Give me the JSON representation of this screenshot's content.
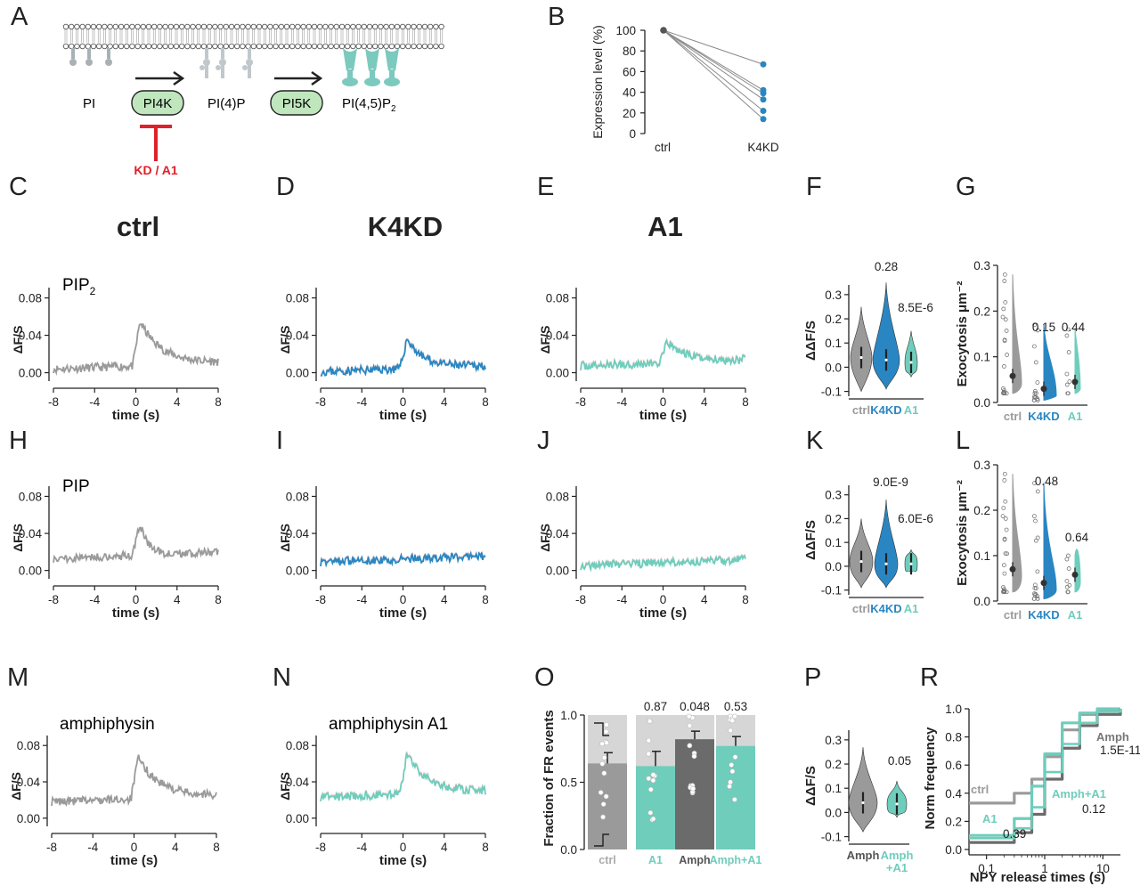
{
  "panel_labels": [
    "A",
    "B",
    "C",
    "D",
    "E",
    "F",
    "G",
    "H",
    "I",
    "J",
    "K",
    "L",
    "M",
    "N",
    "O",
    "P",
    "R"
  ],
  "colors": {
    "ctrl": "#9a9a9a",
    "k4kd": "#2a86c2",
    "a1": "#6fcdbc",
    "amph": "#6b6b6b",
    "green_box": "#bfe6bd",
    "inhibit": "#e0202a",
    "teal_lipid": "#7cc9be",
    "gray_lipid": "#a9b1b5"
  },
  "schematic": {
    "lipids": [
      "PI",
      "PI(4)P",
      "PI(4,5)P",
      "2"
    ],
    "kinases": [
      "PI4K",
      "PI5K"
    ],
    "inhibitor": "KD / A1"
  },
  "conditions": [
    "ctrl",
    "K4KD",
    "A1"
  ],
  "traces": {
    "row1_label": "PIP",
    "row1_sub": "2",
    "row2_label": "PIP",
    "row3_label": "amphiphysin",
    "row3b_label": "amphiphysin A1",
    "ylabel": "ΔF/S",
    "xlabel": "time (s)",
    "yticks": [
      "0.08",
      "0.04",
      "0.00"
    ],
    "xticks": [
      "-8",
      "-4",
      "0",
      "4",
      "8"
    ]
  },
  "chart_data": [
    {
      "id": "B",
      "type": "line",
      "title": "",
      "ylabel": "Expression level (%)",
      "xlabel": "",
      "categories": [
        "ctrl",
        "K4KD"
      ],
      "ylim": [
        0,
        100
      ],
      "yticks": [
        "100",
        "80",
        "60",
        "40",
        "20",
        "0"
      ],
      "series": [
        {
          "name": "cell1",
          "values": [
            100,
            67
          ]
        },
        {
          "name": "cell2",
          "values": [
            100,
            42
          ]
        },
        {
          "name": "cell3",
          "values": [
            100,
            39
          ]
        },
        {
          "name": "cell4",
          "values": [
            100,
            33
          ]
        },
        {
          "name": "cell5",
          "values": [
            100,
            22
          ]
        },
        {
          "name": "cell6",
          "values": [
            100,
            14
          ]
        }
      ]
    },
    {
      "id": "F",
      "type": "violin",
      "ylabel": "ΔΔF/S",
      "categories": [
        "ctrl",
        "K4KD",
        "A1"
      ],
      "ylim": [
        -0.12,
        0.34
      ],
      "yticks": [
        "0.3",
        "0.2",
        "0.1",
        "0.0",
        "-0.1"
      ],
      "medians": [
        0.04,
        0.03,
        0.02
      ],
      "p_values": [
        "",
        "0.28",
        "8.5E-6"
      ]
    },
    {
      "id": "G",
      "type": "violin",
      "ylabel": "Exocytosis μm⁻²",
      "categories": [
        "ctrl",
        "K4KD",
        "A1"
      ],
      "ylim": [
        0,
        0.3
      ],
      "yticks": [
        "0.3",
        "0.2",
        "0.1",
        "0.0"
      ],
      "means": [
        0.058,
        0.03,
        0.045
      ],
      "p_values": [
        "",
        "0.15",
        "0.44"
      ]
    },
    {
      "id": "K",
      "type": "violin",
      "ylabel": "ΔΔF/S",
      "categories": [
        "ctrl",
        "K4KD",
        "A1"
      ],
      "ylim": [
        -0.12,
        0.34
      ],
      "yticks": [
        "0.3",
        "0.2",
        "0.1",
        "0.0",
        "-0.1"
      ],
      "medians": [
        0.02,
        0.01,
        0.01
      ],
      "p_values": [
        "",
        "9.0E-9",
        "6.0E-6"
      ]
    },
    {
      "id": "L",
      "type": "violin",
      "ylabel": "Exocytosis μm⁻²",
      "categories": [
        "ctrl",
        "K4KD",
        "A1"
      ],
      "ylim": [
        0,
        0.3
      ],
      "yticks": [
        "0.3",
        "0.2",
        "0.1",
        "0.0"
      ],
      "means": [
        0.07,
        0.04,
        0.058
      ],
      "p_values": [
        "",
        "0.48",
        "0.64"
      ]
    },
    {
      "id": "O",
      "type": "bar",
      "ylabel": "Fraction of FR events",
      "categories": [
        "ctrl",
        "A1",
        "Amph",
        "Amph+A1"
      ],
      "values": [
        0.64,
        0.62,
        0.82,
        0.77
      ],
      "errors": [
        0.08,
        0.11,
        0.06,
        0.07
      ],
      "ylim": [
        0,
        1
      ],
      "yticks": [
        "1.0",
        "0.5",
        "0.0"
      ],
      "p_values": [
        "",
        "0.87",
        "0.048",
        "0.53"
      ]
    },
    {
      "id": "P",
      "type": "violin",
      "ylabel": "ΔΔF/S",
      "categories": [
        "Amph",
        "Amph +A1"
      ],
      "ylim": [
        -0.12,
        0.34
      ],
      "yticks": [
        "0.3",
        "0.2",
        "0.1",
        "0.0",
        "-0.1"
      ],
      "medians": [
        0.04,
        0.035
      ],
      "p_values": [
        "",
        "0.05"
      ]
    },
    {
      "id": "R",
      "type": "line",
      "xscale": "log",
      "xlabel": "NPY release times (s)",
      "ylabel": "Norm frequency",
      "xticks": [
        "0.1",
        "1",
        "10"
      ],
      "yticks": [
        "1.0",
        "0.8",
        "0.6",
        "0.4",
        "0.2",
        "0.0"
      ],
      "series": [
        {
          "name": "ctrl",
          "x": [
            0.05,
            0.3,
            0.6,
            1,
            2,
            4,
            8,
            20
          ],
          "y": [
            0.33,
            0.4,
            0.5,
            0.66,
            0.85,
            0.96,
            0.99,
            1.0
          ]
        },
        {
          "name": "A1",
          "x": [
            0.05,
            0.3,
            0.6,
            1,
            2,
            4,
            8,
            20
          ],
          "y": [
            0.1,
            0.22,
            0.45,
            0.68,
            0.9,
            0.97,
            1.0,
            1.0
          ]
        },
        {
          "name": "Amph",
          "x": [
            0.05,
            0.3,
            0.6,
            1,
            2,
            4,
            8,
            20
          ],
          "y": [
            0.05,
            0.12,
            0.25,
            0.5,
            0.72,
            0.88,
            0.96,
            1.0
          ]
        },
        {
          "name": "Amph+A1",
          "x": [
            0.05,
            0.3,
            0.6,
            1,
            2,
            4,
            8,
            20
          ],
          "y": [
            0.08,
            0.15,
            0.3,
            0.55,
            0.75,
            0.9,
            0.98,
            1.0
          ]
        }
      ],
      "annotations": [
        "ctrl",
        "A1",
        "0.39",
        "Amph",
        "1.5E-11",
        "Amph+A1",
        "0.12"
      ]
    }
  ]
}
